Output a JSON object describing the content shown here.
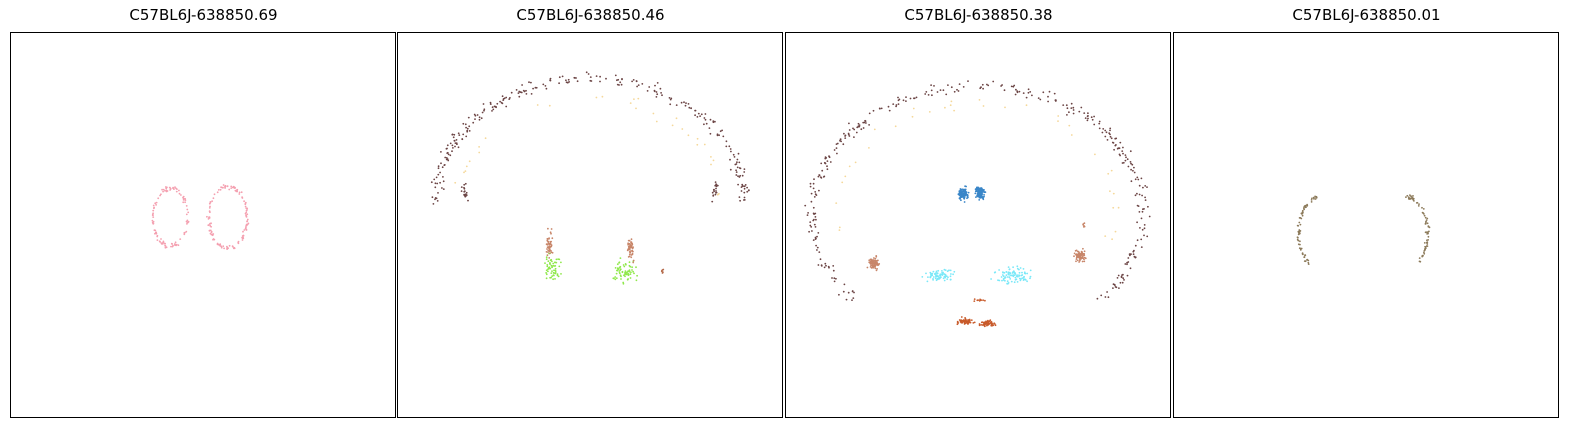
{
  "chart_data": [
    {
      "type": "scatter",
      "title": "C57BL6J-638850.69",
      "xlabel": "",
      "ylabel": "",
      "xlim": [
        0,
        1
      ],
      "ylim": [
        0,
        1
      ],
      "grid": false,
      "axis_ticks": false,
      "series": [
        {
          "color": "#f4a0b0",
          "shape": "ring",
          "cx": 0.415,
          "cy": 0.52,
          "rx": 0.045,
          "ry": 0.075,
          "n": 110
        },
        {
          "color": "#f4a0b0",
          "shape": "ring",
          "cx": 0.565,
          "cy": 0.52,
          "rx": 0.05,
          "ry": 0.08,
          "n": 130
        }
      ]
    },
    {
      "type": "scatter",
      "title": "C57BL6J-638850.46",
      "xlabel": "",
      "ylabel": "",
      "xlim": [
        0,
        1
      ],
      "ylim": [
        0,
        1
      ],
      "grid": false,
      "axis_ticks": false,
      "series": [
        {
          "color": "#6b4444",
          "shape": "arc",
          "cx": 0.5,
          "cy": 0.56,
          "rx": 0.4,
          "ry": 0.32,
          "a0": 0.0,
          "a1": 3.1416,
          "n": 260,
          "spread": 0.045
        },
        {
          "color": "#6b4444",
          "shape": "arc",
          "cx": 0.5,
          "cy": 0.62,
          "rx": 0.33,
          "ry": 0.22,
          "a0": -0.25,
          "a1": -0.05,
          "n": 18,
          "spread": 0.02
        },
        {
          "color": "#6b4444",
          "shape": "arc",
          "cx": 0.5,
          "cy": 0.62,
          "rx": 0.33,
          "ry": 0.22,
          "a0": 3.19,
          "a1": 3.39,
          "n": 18,
          "spread": 0.02
        },
        {
          "color": "#f5d89a",
          "shape": "arc",
          "cx": 0.5,
          "cy": 0.56,
          "rx": 0.34,
          "ry": 0.27,
          "a0": -0.1,
          "a1": 3.24,
          "n": 30,
          "spread": 0.05
        },
        {
          "color": "#8fe84a",
          "shape": "cluster",
          "cx": 0.4,
          "cy": 0.39,
          "rx": 0.03,
          "ry": 0.05,
          "n": 60
        },
        {
          "color": "#8fe84a",
          "shape": "cluster",
          "cx": 0.59,
          "cy": 0.38,
          "rx": 0.04,
          "ry": 0.045,
          "n": 70
        },
        {
          "color": "#c8866a",
          "shape": "cluster",
          "cx": 0.395,
          "cy": 0.45,
          "rx": 0.012,
          "ry": 0.045,
          "n": 50
        },
        {
          "color": "#c8866a",
          "shape": "cluster",
          "cx": 0.605,
          "cy": 0.44,
          "rx": 0.012,
          "ry": 0.045,
          "n": 50
        },
        {
          "color": "#b56a4a",
          "shape": "cluster",
          "cx": 0.69,
          "cy": 0.38,
          "rx": 0.01,
          "ry": 0.012,
          "n": 6
        }
      ]
    },
    {
      "type": "scatter",
      "title": "C57BL6J-638850.38",
      "xlabel": "",
      "ylabel": "",
      "xlim": [
        0,
        1
      ],
      "ylim": [
        0,
        1
      ],
      "grid": false,
      "axis_ticks": false,
      "series": [
        {
          "color": "#6b4444",
          "shape": "arc",
          "cx": 0.5,
          "cy": 0.53,
          "rx": 0.43,
          "ry": 0.33,
          "a0": -0.75,
          "a1": 3.89,
          "n": 340,
          "spread": 0.05
        },
        {
          "color": "#f5d89a",
          "shape": "arc",
          "cx": 0.5,
          "cy": 0.53,
          "rx": 0.36,
          "ry": 0.29,
          "a0": -0.5,
          "a1": 3.64,
          "n": 35,
          "spread": 0.05
        },
        {
          "color": "#3a86c8",
          "shape": "cluster",
          "cx": 0.46,
          "cy": 0.58,
          "rx": 0.018,
          "ry": 0.022,
          "n": 120
        },
        {
          "color": "#3a86c8",
          "shape": "cluster",
          "cx": 0.505,
          "cy": 0.585,
          "rx": 0.018,
          "ry": 0.022,
          "n": 120
        },
        {
          "color": "#c8866a",
          "shape": "cluster",
          "cx": 0.23,
          "cy": 0.4,
          "rx": 0.022,
          "ry": 0.022,
          "n": 80
        },
        {
          "color": "#c8866a",
          "shape": "cluster",
          "cx": 0.765,
          "cy": 0.42,
          "rx": 0.02,
          "ry": 0.022,
          "n": 70
        },
        {
          "color": "#c8866a",
          "shape": "cluster",
          "cx": 0.775,
          "cy": 0.5,
          "rx": 0.004,
          "ry": 0.012,
          "n": 6
        },
        {
          "color": "#7ae8f8",
          "shape": "cluster",
          "cx": 0.4,
          "cy": 0.37,
          "rx": 0.055,
          "ry": 0.025,
          "n": 80
        },
        {
          "color": "#7ae8f8",
          "shape": "cluster",
          "cx": 0.59,
          "cy": 0.37,
          "rx": 0.06,
          "ry": 0.03,
          "n": 90
        },
        {
          "color": "#c85a2a",
          "shape": "cluster",
          "cx": 0.465,
          "cy": 0.25,
          "rx": 0.03,
          "ry": 0.012,
          "n": 60
        },
        {
          "color": "#c85a2a",
          "shape": "cluster",
          "cx": 0.525,
          "cy": 0.245,
          "rx": 0.03,
          "ry": 0.012,
          "n": 60
        },
        {
          "color": "#c85a2a",
          "shape": "cluster",
          "cx": 0.5,
          "cy": 0.305,
          "rx": 0.04,
          "ry": 0.006,
          "n": 10
        }
      ]
    },
    {
      "type": "scatter",
      "title": "C57BL6J-638850.01",
      "xlabel": "",
      "ylabel": "",
      "xlim": [
        0,
        1
      ],
      "ylim": [
        0,
        1
      ],
      "grid": false,
      "axis_ticks": false,
      "series": [
        {
          "color": "#8c7a5a",
          "shape": "arc",
          "cx": 0.385,
          "cy": 0.48,
          "rx": 0.06,
          "ry": 0.095,
          "a0": 1.7,
          "a1": 4.1,
          "n": 70,
          "spread": 0.015
        },
        {
          "color": "#8c7a5a",
          "shape": "arc",
          "cx": 0.6,
          "cy": 0.48,
          "rx": 0.06,
          "ry": 0.095,
          "a0": -0.96,
          "a1": 1.44,
          "n": 70,
          "spread": 0.015
        }
      ]
    }
  ]
}
